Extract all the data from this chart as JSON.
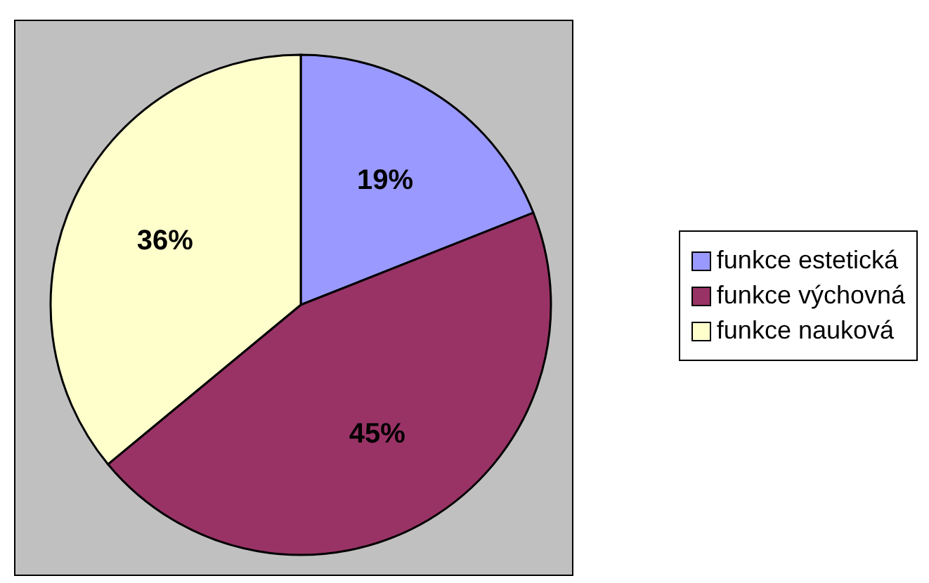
{
  "chart_data": {
    "type": "pie",
    "categories": [
      "funkce estetická",
      "funkce výchovná",
      "funkce nauková"
    ],
    "values": [
      19,
      45,
      36
    ],
    "value_labels": [
      "19%",
      "45%",
      "36%"
    ],
    "colors": [
      "#9999ff",
      "#993366",
      "#ffffcc"
    ],
    "legend": "right"
  }
}
